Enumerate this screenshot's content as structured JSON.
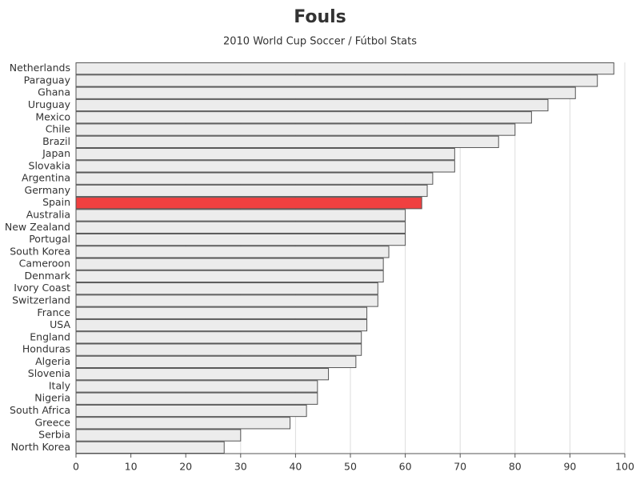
{
  "chart_data": {
    "type": "hbar",
    "title": "Fouls",
    "subtitle": "2010 World Cup Soccer / Fútbol Stats",
    "categories": [
      "Netherlands",
      "Paraguay",
      "Ghana",
      "Uruguay",
      "Mexico",
      "Chile",
      "Brazil",
      "Japan",
      "Slovakia",
      "Argentina",
      "Germany",
      "Spain",
      "Australia",
      "New Zealand",
      "Portugal",
      "South Korea",
      "Cameroon",
      "Denmark",
      "Ivory Coast",
      "Switzerland",
      "France",
      "USA",
      "England",
      "Honduras",
      "Algeria",
      "Slovenia",
      "Italy",
      "Nigeria",
      "South Africa",
      "Greece",
      "Serbia",
      "North Korea"
    ],
    "values": [
      98,
      95,
      91,
      86,
      83,
      80,
      77,
      69,
      69,
      65,
      64,
      63,
      60,
      60,
      60,
      57,
      56,
      56,
      55,
      55,
      53,
      53,
      52,
      52,
      51,
      46,
      44,
      44,
      42,
      39,
      30,
      27
    ],
    "colors": [
      "#ececec",
      "#ececec",
      "#ececec",
      "#ececec",
      "#ececec",
      "#ececec",
      "#ececec",
      "#ececec",
      "#ececec",
      "#ececec",
      "#ececec",
      "#f04040",
      "#ececec",
      "#ececec",
      "#ececec",
      "#ececec",
      "#ececec",
      "#ececec",
      "#ececec",
      "#ececec",
      "#ececec",
      "#ececec",
      "#ececec",
      "#ececec",
      "#ececec",
      "#ececec",
      "#ececec",
      "#ececec",
      "#ececec",
      "#ececec",
      "#ececec",
      "#ececec"
    ],
    "xlim": [
      0,
      100
    ],
    "xticks": [
      0,
      10,
      20,
      30,
      40,
      50,
      60,
      70,
      80,
      90,
      100
    ],
    "grid": true
  }
}
